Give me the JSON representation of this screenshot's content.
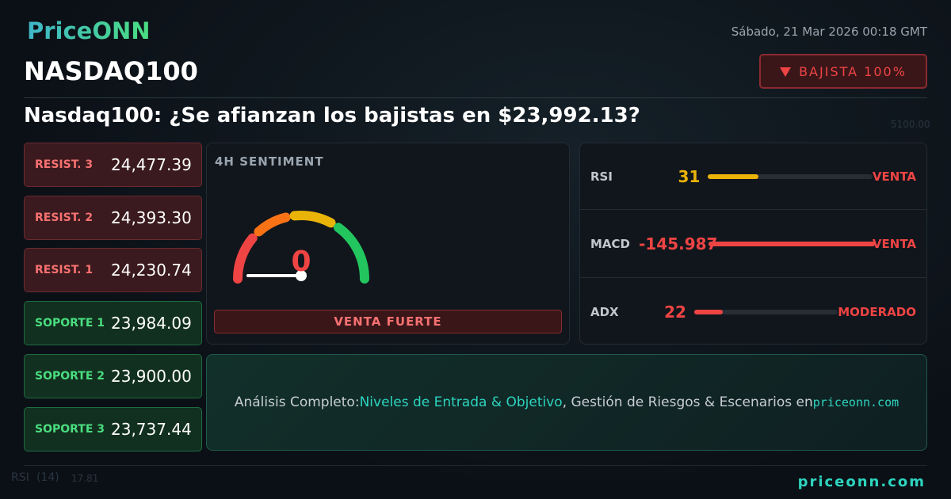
{
  "header": {
    "brand": "PriceONN",
    "date": "Sábado, 21 Mar 2026 00:18 GMT",
    "symbol": "NASDAQ100",
    "badge": "BAJISTA 100%"
  },
  "headline": "Nasdaq100: ¿Se afianzan los bajistas en $23,992.13?",
  "levels": [
    {
      "label": "RESIST. 3",
      "value": "24,477.39",
      "kind": "resistance"
    },
    {
      "label": "RESIST. 2",
      "value": "24,393.30",
      "kind": "resistance"
    },
    {
      "label": "RESIST. 1",
      "value": "24,230.74",
      "kind": "resistance"
    },
    {
      "label": "SOPORTE 1",
      "value": "23,984.09",
      "kind": "support"
    },
    {
      "label": "SOPORTE 2",
      "value": "23,900.00",
      "kind": "support"
    },
    {
      "label": "SOPORTE 3",
      "value": "23,737.44",
      "kind": "support"
    }
  ],
  "sentiment": {
    "title": "4H SENTIMENT",
    "value": 0,
    "verdict": "VENTA FUERTE"
  },
  "indicators": [
    {
      "name": "RSI",
      "value": 31,
      "signal": "VENTA",
      "value_color": "#eab308",
      "signal_color": "#ef4444",
      "bar_color": "#eab308"
    },
    {
      "name": "MACD",
      "value": -145.987,
      "signal": "VENTA",
      "value_color": "#ef4444",
      "signal_color": "#ef4444",
      "bar_color": "#ef4444"
    },
    {
      "name": "ADX",
      "value": 22,
      "signal": "MODERADO",
      "value_color": "#ef4444",
      "signal_color": "#ef4444",
      "bar_color": "#ef4444"
    }
  ],
  "cta": {
    "lead": "Análisis Completo:",
    "highlight": "Niveles de Entrada & Objetivo",
    "rest": ", Gestión de Riesgos & Escenarios en",
    "site": "priceonn.com"
  },
  "footer": {
    "site": "priceonn.com"
  },
  "background": {
    "labels": [
      "5100.00",
      "RSI",
      "(14)",
      "17.81"
    ]
  }
}
